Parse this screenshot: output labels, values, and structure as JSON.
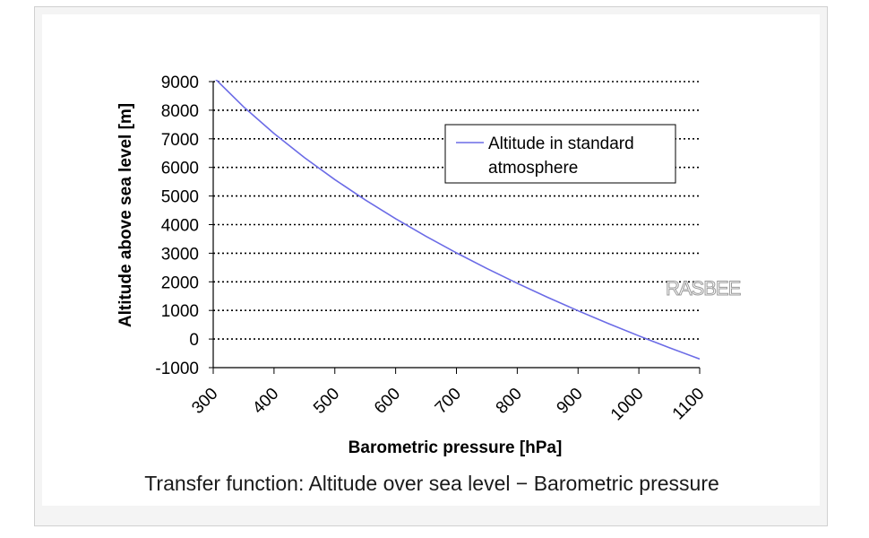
{
  "chart_data": {
    "type": "line",
    "title": "",
    "xlabel": "Barometric pressure [hPa]",
    "ylabel": "Altitude above sea level [m]",
    "xlim": [
      300,
      1100
    ],
    "ylim": [
      -1000,
      9000
    ],
    "x_ticks": [
      "300",
      "400",
      "500",
      "600",
      "700",
      "800",
      "900",
      "1000",
      "1100"
    ],
    "y_ticks": [
      "9000",
      "8000",
      "7000",
      "6000",
      "5000",
      "4000",
      "3000",
      "2000",
      "1000",
      "0",
      "-1000"
    ],
    "grid": "horizontal dotted",
    "legend_position": "top-right",
    "series": [
      {
        "name": "Altitude in standard atmosphere",
        "color": "#6b6be6",
        "x": [
          300,
          350,
          400,
          450,
          500,
          550,
          600,
          650,
          700,
          750,
          800,
          850,
          900,
          950,
          1000,
          1013.25,
          1050,
          1100
        ],
        "y": [
          9164,
          8117,
          7185,
          6344,
          5574,
          4865,
          4206,
          3591,
          3012,
          2466,
          1949,
          1457,
          988,
          540,
          111,
          0,
          -302,
          -698
        ]
      }
    ]
  },
  "caption": "Transfer function: Altitude over sea level − Barometric pressure",
  "watermark": "RASBEE"
}
